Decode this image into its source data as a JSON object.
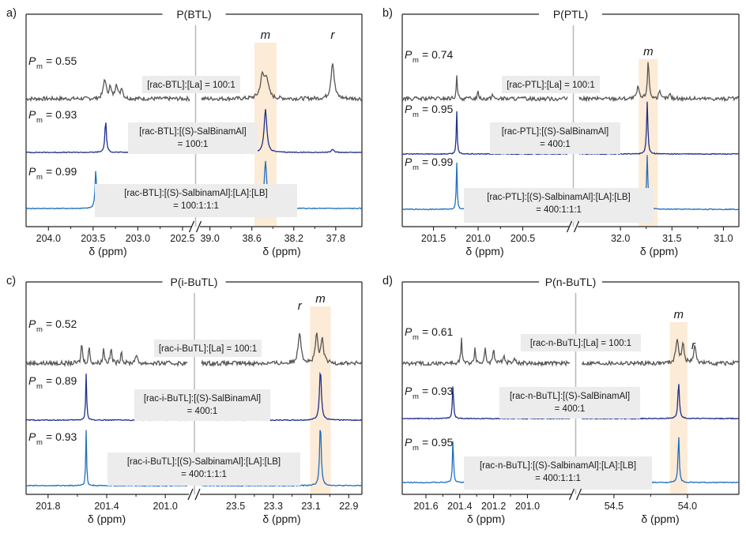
{
  "chart_data": [
    {
      "type": "line",
      "panel_label": "a)",
      "title": "P(BTL)",
      "xlabel": "δ (ppm)",
      "left_axis": {
        "ticks": [
          "204.0",
          "203.5",
          "203.0",
          "202.5"
        ],
        "range": [
          204.25,
          202.42
        ]
      },
      "right_axis": {
        "ticks": [
          "39.0",
          "38.6",
          "38.2",
          "37.8"
        ],
        "range": [
          39.08,
          37.55
        ]
      },
      "highlight_label": "m",
      "highlight_center_ppm": 38.47,
      "extra_peak_labels": [
        {
          "text": "r",
          "ppm": 37.83
        }
      ],
      "spectra": [
        {
          "color": "#555555",
          "pm_label": "P",
          "pm_sub": "m",
          "pm_value": "= 0.55",
          "condition": [
            "[rac-BTL]:[La] = 100:1"
          ],
          "peaks_left": [
            {
              "ppm": 203.37,
              "height": 0.45,
              "width": 0.035
            },
            {
              "ppm": 203.31,
              "height": 0.25,
              "width": 0.03
            },
            {
              "ppm": 203.24,
              "height": 0.35,
              "width": 0.03
            },
            {
              "ppm": 203.18,
              "height": 0.25,
              "width": 0.03
            }
          ],
          "peaks_right": [
            {
              "ppm": 38.5,
              "height": 0.5,
              "width": 0.045
            },
            {
              "ppm": 38.46,
              "height": 0.45,
              "width": 0.04
            },
            {
              "ppm": 37.83,
              "height": 0.85,
              "width": 0.035
            }
          ]
        },
        {
          "color": "#1f2f8c",
          "pm_label": "P",
          "pm_sub": "m",
          "pm_value": "= 0.93",
          "condition": [
            "[rac-BTL]:[(S)-SalBinamAl]",
            "= 100:1"
          ],
          "peaks_left": [
            {
              "ppm": 203.36,
              "height": 0.75,
              "width": 0.02
            }
          ],
          "peaks_right": [
            {
              "ppm": 38.47,
              "height": 1.0,
              "width": 0.03
            },
            {
              "ppm": 37.83,
              "height": 0.06,
              "width": 0.03
            }
          ]
        },
        {
          "color": "#1f6fc0",
          "pm_label": "P",
          "pm_sub": "m",
          "pm_value": "= 0.99",
          "condition": [
            "[rac-BTL]:[(S)-SalbinamAl]:[LA]:[LB]",
            "= 100:1:1:1"
          ],
          "peaks_left": [
            {
              "ppm": 203.47,
              "height": 0.9,
              "width": 0.02
            }
          ],
          "peaks_right": [
            {
              "ppm": 38.47,
              "height": 1.1,
              "width": 0.028
            }
          ]
        }
      ]
    },
    {
      "type": "line",
      "panel_label": "b)",
      "title": "P(PTL)",
      "xlabel": "δ (ppm)",
      "left_axis": {
        "ticks": [
          "201.5",
          "201.0",
          "200.5"
        ],
        "range": [
          201.85,
          200.0
        ]
      },
      "right_axis": {
        "ticks": [
          "32.0",
          "31.5",
          "31.0"
        ],
        "range": [
          32.4,
          30.85
        ]
      },
      "highlight_label": "m",
      "highlight_center_ppm": 31.73,
      "extra_peak_labels": [],
      "spectra": [
        {
          "color": "#555555",
          "pm_label": "P",
          "pm_sub": "m",
          "pm_value": "= 0.74",
          "condition": [
            "[rac-PTL]:[La] = 100:1"
          ],
          "peaks_left": [
            {
              "ppm": 201.24,
              "height": 0.5,
              "width": 0.015
            },
            {
              "ppm": 201.0,
              "height": 0.15,
              "width": 0.02
            },
            {
              "ppm": 200.84,
              "height": 0.1,
              "width": 0.02
            }
          ],
          "peaks_right": [
            {
              "ppm": 31.83,
              "height": 0.3,
              "width": 0.02
            },
            {
              "ppm": 31.73,
              "height": 0.85,
              "width": 0.02
            },
            {
              "ppm": 31.62,
              "height": 0.15,
              "width": 0.02
            },
            {
              "ppm": 31.52,
              "height": 0.1,
              "width": 0.02
            }
          ]
        },
        {
          "color": "#1f2f8c",
          "pm_label": "P",
          "pm_sub": "m",
          "pm_value": "= 0.95",
          "condition": [
            "[rac-PTL]:[(S)-SalBinamAl]",
            "= 400:1"
          ],
          "peaks_left": [
            {
              "ppm": 201.24,
              "height": 1.0,
              "width": 0.012
            }
          ],
          "peaks_right": [
            {
              "ppm": 31.74,
              "height": 1.2,
              "width": 0.015
            }
          ]
        },
        {
          "color": "#1f6fc0",
          "pm_label": "P",
          "pm_sub": "m",
          "pm_value": "= 0.99",
          "condition": [
            "[rac-PTL]:[(S)-SalbinamAl]:[LA]:[LB]",
            "= 400:1:1:1"
          ],
          "peaks_left": [
            {
              "ppm": 201.24,
              "height": 1.1,
              "width": 0.012
            }
          ],
          "peaks_right": [
            {
              "ppm": 31.74,
              "height": 1.25,
              "width": 0.015
            }
          ]
        }
      ]
    },
    {
      "type": "line",
      "panel_label": "c)",
      "title": "P(i-BuTL)",
      "xlabel": "δ (ppm)",
      "left_axis": {
        "ticks": [
          "201.8",
          "201.4",
          "201.0"
        ],
        "range": [
          201.95,
          200.85
        ]
      },
      "right_axis": {
        "ticks": [
          "23.5",
          "23.3",
          "23.1",
          "22.9"
        ],
        "range": [
          23.68,
          22.83
        ]
      },
      "highlight_label": "m",
      "highlight_center_ppm": 23.05,
      "extra_peak_labels": [
        {
          "text": "r",
          "ppm": 23.16
        }
      ],
      "spectra": [
        {
          "color": "#555555",
          "pm_label": "P",
          "pm_sub": "m",
          "pm_value": "= 0.52",
          "condition": [
            "[rac-i-BuTL]:[La] = 100:1"
          ],
          "peaks_left": [
            {
              "ppm": 201.57,
              "height": 0.45,
              "width": 0.01
            },
            {
              "ppm": 201.52,
              "height": 0.35,
              "width": 0.01
            },
            {
              "ppm": 201.42,
              "height": 0.3,
              "width": 0.012
            },
            {
              "ppm": 201.37,
              "height": 0.3,
              "width": 0.012
            },
            {
              "ppm": 201.3,
              "height": 0.25,
              "width": 0.012
            },
            {
              "ppm": 201.2,
              "height": 0.18,
              "width": 0.015
            }
          ],
          "peaks_right": [
            {
              "ppm": 23.16,
              "height": 0.65,
              "width": 0.018
            },
            {
              "ppm": 23.07,
              "height": 0.6,
              "width": 0.015
            },
            {
              "ppm": 23.04,
              "height": 0.5,
              "width": 0.015
            }
          ]
        },
        {
          "color": "#1f2f8c",
          "pm_label": "P",
          "pm_sub": "m",
          "pm_value": "= 0.89",
          "condition": [
            "[rac-i-BuTL]:[(S)-SalBinamAl]",
            "= 400:1"
          ],
          "peaks_left": [
            {
              "ppm": 201.54,
              "height": 0.95,
              "width": 0.008
            }
          ],
          "peaks_right": [
            {
              "ppm": 23.05,
              "height": 1.05,
              "width": 0.012
            }
          ]
        },
        {
          "color": "#1f6fc0",
          "pm_label": "P",
          "pm_sub": "m",
          "pm_value": "= 0.93",
          "condition": [
            "[rac-i-BuTL]:[(S)-SalbinamAl]:[LA]:[LB]",
            "= 400:1:1:1"
          ],
          "peaks_left": [
            {
              "ppm": 201.54,
              "height": 1.15,
              "width": 0.007
            }
          ],
          "peaks_right": [
            {
              "ppm": 23.05,
              "height": 1.3,
              "width": 0.01
            }
          ]
        }
      ]
    },
    {
      "type": "line",
      "panel_label": "d)",
      "title": "P(n-BuTL)",
      "xlabel": "δ (ppm)",
      "left_axis": {
        "ticks": [
          "201.6",
          "201.4",
          "201.2",
          "201.0"
        ],
        "range": [
          201.74,
          200.75
        ]
      },
      "right_axis": {
        "ticks": [
          "54.5",
          "54.0"
        ],
        "range": [
          54.72,
          53.65
        ]
      },
      "highlight_label": "m",
      "highlight_center_ppm": 54.06,
      "extra_peak_labels": [
        {
          "text": "r",
          "ppm": 53.96
        }
      ],
      "spectra": [
        {
          "color": "#555555",
          "pm_label": "P",
          "pm_sub": "m",
          "pm_value": "= 0.61",
          "condition": [
            "[rac-n-BuTL]:[La] = 100:1"
          ],
          "peaks_left": [
            {
              "ppm": 201.39,
              "height": 0.55,
              "width": 0.008
            },
            {
              "ppm": 201.31,
              "height": 0.3,
              "width": 0.01
            },
            {
              "ppm": 201.25,
              "height": 0.3,
              "width": 0.01
            },
            {
              "ppm": 201.2,
              "height": 0.35,
              "width": 0.01
            },
            {
              "ppm": 201.14,
              "height": 0.18,
              "width": 0.012
            },
            {
              "ppm": 201.08,
              "height": 0.12,
              "width": 0.015
            }
          ],
          "peaks_right": [
            {
              "ppm": 54.07,
              "height": 0.55,
              "width": 0.02
            },
            {
              "ppm": 54.03,
              "height": 0.4,
              "width": 0.018
            },
            {
              "ppm": 53.95,
              "height": 0.35,
              "width": 0.02
            }
          ]
        },
        {
          "color": "#1f2f8c",
          "pm_label": "P",
          "pm_sub": "m",
          "pm_value": "= 0.93",
          "condition": [
            "[rac-n-BuTL]:[(S)-SalBinamAl]",
            "= 400:1"
          ],
          "peaks_left": [
            {
              "ppm": 201.44,
              "height": 0.75,
              "width": 0.008
            }
          ],
          "peaks_right": [
            {
              "ppm": 54.06,
              "height": 0.8,
              "width": 0.012
            }
          ]
        },
        {
          "color": "#1f6fc0",
          "pm_label": "P",
          "pm_sub": "m",
          "pm_value": "= 0.95",
          "condition": [
            "[rac-n-BuTL]:[(S)-SalbinamAl]:[LA]:[LB]",
            "= 400:1:1:1"
          ],
          "peaks_left": [
            {
              "ppm": 201.44,
              "height": 1.0,
              "width": 0.007
            }
          ],
          "peaks_right": [
            {
              "ppm": 54.06,
              "height": 1.05,
              "width": 0.01
            }
          ]
        }
      ]
    }
  ]
}
